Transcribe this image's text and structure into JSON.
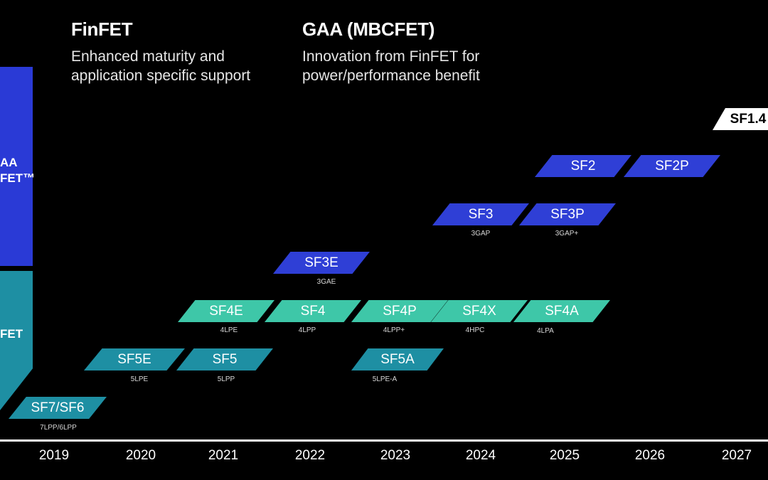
{
  "headers": {
    "finfet": {
      "title": "FinFET",
      "desc_line1": "Enhanced maturity and",
      "desc_line2": "application specific support"
    },
    "gaa": {
      "title": "GAA (MBCFET)",
      "desc_line1": "Innovation from FinFET for",
      "desc_line2": "power/performance benefit"
    }
  },
  "bands": {
    "gaa_label": "AA\nFET™",
    "finfet_label": "FET"
  },
  "nodes": {
    "sf14": {
      "name": "SF1.4",
      "sub": ""
    },
    "sf2": {
      "name": "SF2",
      "sub": ""
    },
    "sf2p": {
      "name": "SF2P",
      "sub": ""
    },
    "sf3": {
      "name": "SF3",
      "sub": "3GAP"
    },
    "sf3p": {
      "name": "SF3P",
      "sub": "3GAP+"
    },
    "sf3e": {
      "name": "SF3E",
      "sub": "3GAE"
    },
    "sf4e": {
      "name": "SF4E",
      "sub": "4LPE"
    },
    "sf4": {
      "name": "SF4",
      "sub": "4LPP"
    },
    "sf4p": {
      "name": "SF4P",
      "sub": "4LPP+"
    },
    "sf4x": {
      "name": "SF4X",
      "sub": "4HPC"
    },
    "sf4a": {
      "name": "SF4A",
      "sub": "4LPA"
    },
    "sf5e": {
      "name": "SF5E",
      "sub": "5LPE"
    },
    "sf5": {
      "name": "SF5",
      "sub": "5LPP"
    },
    "sf5a": {
      "name": "SF5A",
      "sub": "5LPE-A"
    },
    "sf7": {
      "name": "SF7/SF6",
      "sub": "7LPP/6LPP"
    }
  },
  "years": [
    "2019",
    "2020",
    "2021",
    "2022",
    "2023",
    "2024",
    "2025",
    "2026",
    "2027"
  ],
  "colors": {
    "gaa": "#2f3fd6",
    "finfet_mint": "#3ec7a8",
    "finfet_teal": "#1e8fa3",
    "future": "#ffffff",
    "background": "#000000"
  }
}
